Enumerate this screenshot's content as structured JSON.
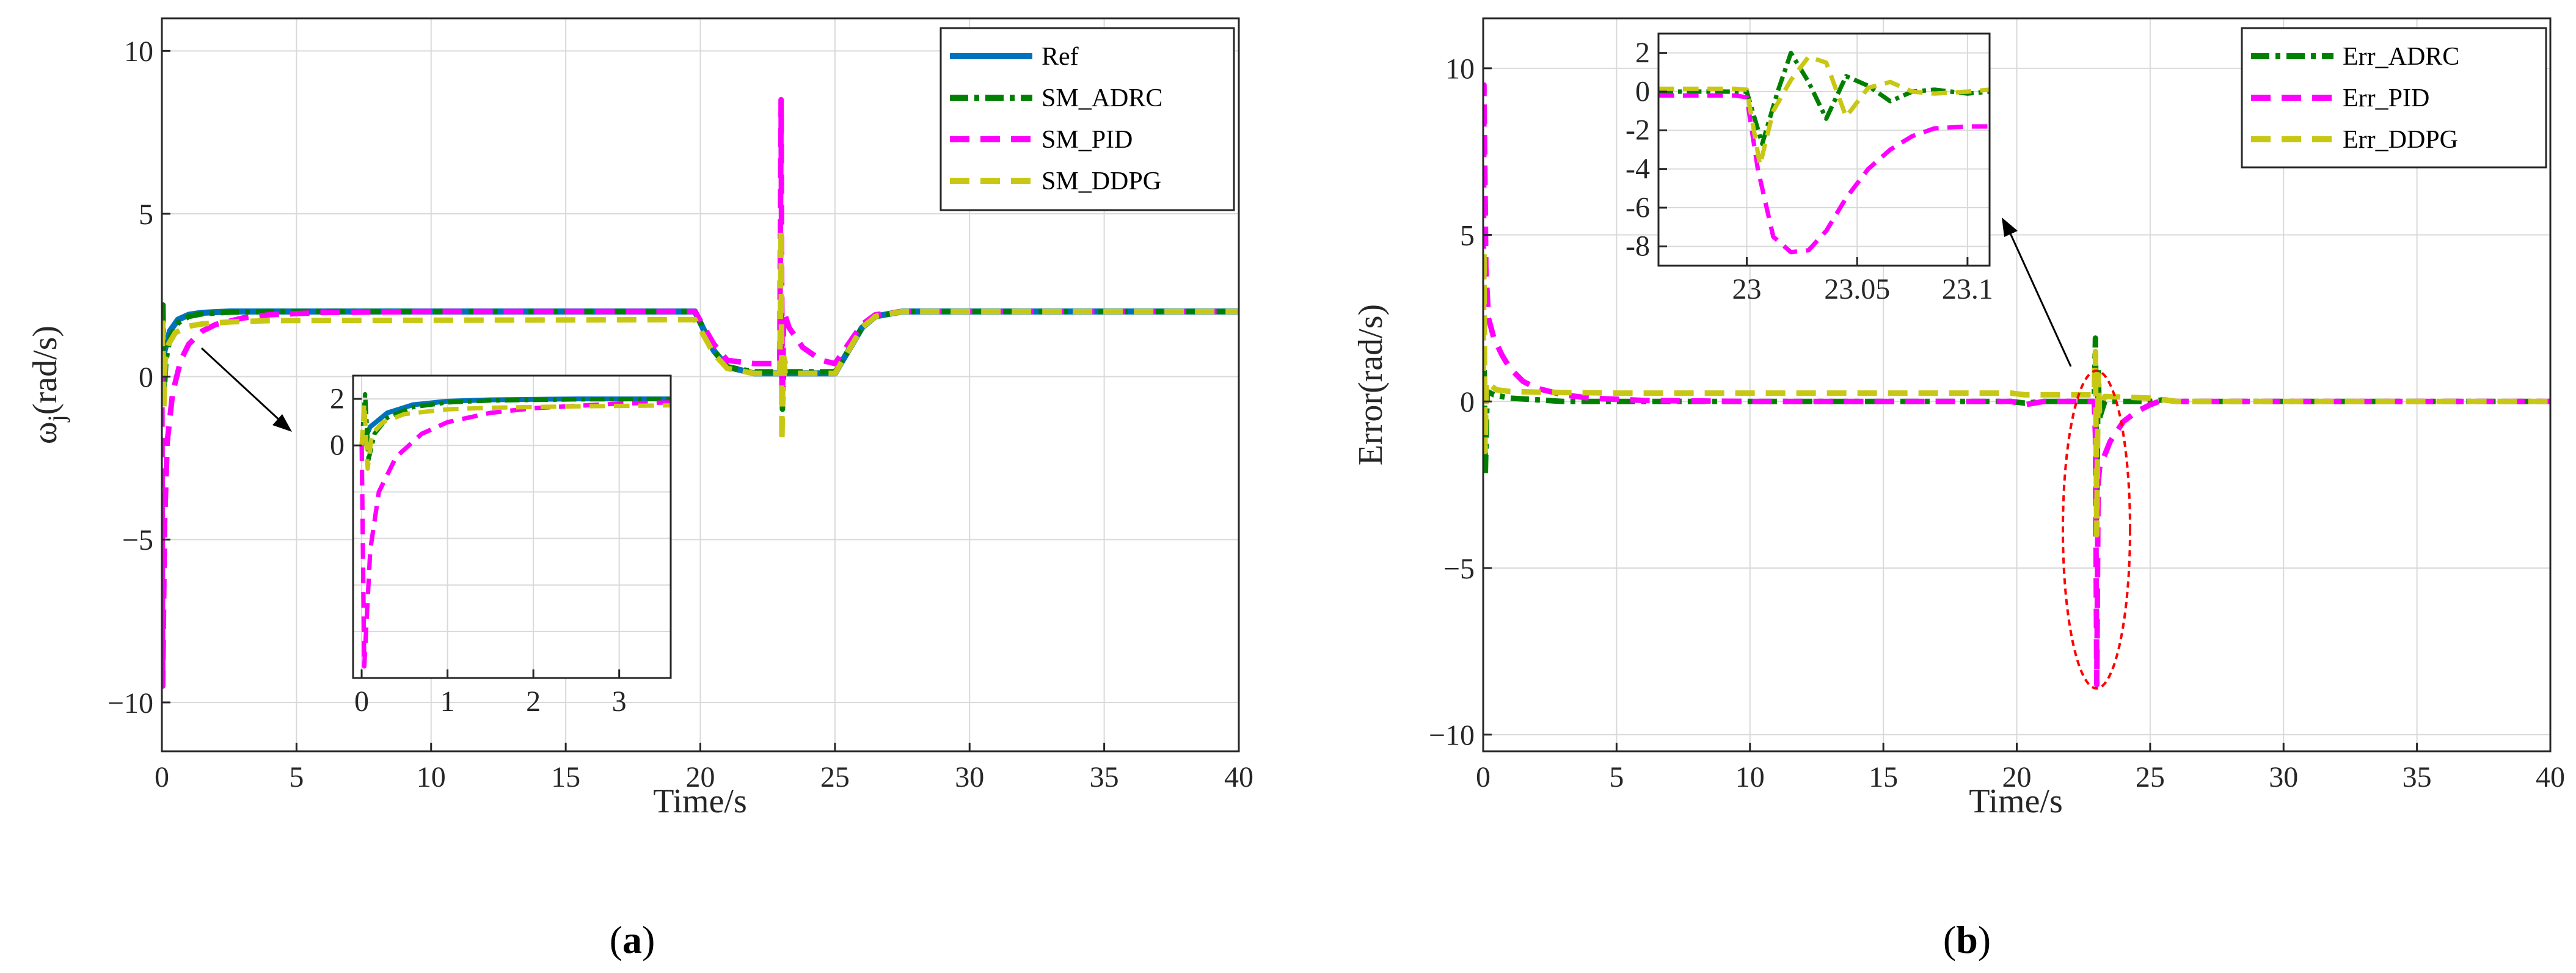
{
  "colors": {
    "ref": "#0072bd",
    "adrc": "#008000",
    "pid": "#ff00ff",
    "ddpg": "#c8c814",
    "annot": "#ff0000"
  },
  "chart_data": [
    {
      "type": "line",
      "panel_label": "(a)",
      "panel_letter": "a",
      "xlabel": "Time/s",
      "ylabel": "ω",
      "ylabel_sub": "j",
      "ylabel_rest": "(rad/s)",
      "xlim": [
        0,
        40
      ],
      "ylim": [
        -11.5,
        11
      ],
      "xticks": [
        0,
        5,
        10,
        15,
        20,
        25,
        30,
        35,
        40
      ],
      "yticks": [
        -10,
        -5,
        0,
        5,
        10
      ],
      "ytick_labels": [
        "−10",
        "−5",
        "0",
        "5",
        "10"
      ],
      "grid": true,
      "legend_position": "top-right",
      "legend": [
        "Ref",
        "SM_ADRC",
        "SM_PID",
        "SM_DDPG"
      ],
      "series": [
        {
          "name": "Ref",
          "x": [
            0,
            0.1,
            0.3,
            0.6,
            1.0,
            1.5,
            2.5,
            4,
            19.8,
            20.5,
            21.0,
            22.0,
            25.0,
            25.5,
            26.0,
            26.5,
            27.5,
            40
          ],
          "y": [
            0,
            0.8,
            1.4,
            1.75,
            1.9,
            1.96,
            2.0,
            2.0,
            2.0,
            0.8,
            0.3,
            0.1,
            0.1,
            0.8,
            1.5,
            1.85,
            2.0,
            2.0
          ]
        },
        {
          "name": "SM_ADRC",
          "x": [
            0,
            0.04,
            0.08,
            0.15,
            0.3,
            0.6,
            1.0,
            1.5,
            2.5,
            4,
            19.8,
            20.5,
            21.0,
            22.0,
            22.95,
            23.0,
            23.05,
            23.1,
            23.2,
            23.5,
            25.0,
            25.5,
            26.0,
            26.5,
            27.5,
            40
          ],
          "y": [
            0,
            2.2,
            -0.6,
            0.5,
            1.2,
            1.65,
            1.85,
            1.93,
            1.98,
            2.0,
            2.0,
            0.8,
            0.3,
            0.15,
            0.15,
            2.0,
            -1.0,
            0.6,
            0.15,
            0.15,
            0.15,
            0.8,
            1.5,
            1.85,
            2.0,
            2.0
          ]
        },
        {
          "name": "SM_PID",
          "x": [
            0,
            0.03,
            0.1,
            0.2,
            0.4,
            0.7,
            1.0,
            1.5,
            2.0,
            3.0,
            4.0,
            6.0,
            10,
            19.8,
            20.5,
            21.0,
            22.0,
            22.95,
            23.0,
            23.02,
            23.05,
            23.1,
            23.3,
            23.8,
            24.5,
            25.0,
            25.5,
            26.0,
            26.5,
            27.5,
            40
          ],
          "y": [
            0,
            -9.5,
            -4.5,
            -2.0,
            -0.5,
            0.5,
            1.0,
            1.4,
            1.6,
            1.8,
            1.9,
            1.97,
            2.0,
            2.0,
            1.0,
            0.5,
            0.4,
            0.4,
            8.5,
            3.0,
            -0.5,
            2.0,
            1.5,
            0.9,
            0.5,
            0.4,
            1.0,
            1.6,
            1.9,
            2.0,
            2.0
          ]
        },
        {
          "name": "SM_DDPG",
          "x": [
            0,
            0.03,
            0.07,
            0.12,
            0.25,
            0.5,
            1.0,
            1.5,
            2.5,
            4,
            19.8,
            20.5,
            21.0,
            22.0,
            22.95,
            23.0,
            23.03,
            23.08,
            23.15,
            23.3,
            25.0,
            25.5,
            26.0,
            26.5,
            27.5,
            40
          ],
          "y": [
            0,
            1.8,
            -1.0,
            0.5,
            1.0,
            1.35,
            1.55,
            1.62,
            1.68,
            1.72,
            1.75,
            0.7,
            0.25,
            0.1,
            0.1,
            4.5,
            -2.0,
            0.8,
            0.1,
            0.1,
            0.1,
            0.8,
            1.5,
            1.85,
            2.0,
            2.0
          ]
        }
      ],
      "inset": {
        "xlim": [
          -0.1,
          3.6
        ],
        "ylim": [
          -10,
          3
        ],
        "xticks": [
          0,
          1,
          2,
          3
        ],
        "yticks": [
          0,
          2
        ],
        "grid_y": [
          -10,
          -8,
          -6,
          -4,
          -2,
          0,
          2
        ],
        "series": [
          {
            "name": "Ref",
            "x": [
              0,
              0.1,
              0.3,
              0.6,
              1.0,
              1.5,
              2.5,
              3.6
            ],
            "y": [
              0,
              0.8,
              1.4,
              1.75,
              1.9,
              1.96,
              2.0,
              2.0
            ]
          },
          {
            "name": "SM_ADRC",
            "x": [
              0,
              0.04,
              0.08,
              0.15,
              0.3,
              0.6,
              1.0,
              1.5,
              2.5,
              3.6
            ],
            "y": [
              0,
              2.2,
              -0.6,
              0.5,
              1.2,
              1.65,
              1.85,
              1.93,
              1.98,
              2.0
            ]
          },
          {
            "name": "SM_PID",
            "x": [
              0,
              0.03,
              0.1,
              0.2,
              0.4,
              0.7,
              1.0,
              1.5,
              2.0,
              3.0,
              3.6
            ],
            "y": [
              0,
              -9.5,
              -4.5,
              -2.0,
              -0.5,
              0.5,
              1.0,
              1.4,
              1.6,
              1.8,
              1.85
            ]
          },
          {
            "name": "SM_DDPG",
            "x": [
              0,
              0.03,
              0.07,
              0.12,
              0.25,
              0.5,
              1.0,
              1.5,
              2.5,
              3.6
            ],
            "y": [
              0,
              1.8,
              -1.0,
              0.5,
              1.0,
              1.35,
              1.55,
              1.62,
              1.68,
              1.72
            ]
          }
        ]
      }
    },
    {
      "type": "line",
      "panel_label": "(b)",
      "panel_letter": "b",
      "xlabel": "Time/s",
      "ylabel": "Error(rad/s)",
      "xlim": [
        0,
        40
      ],
      "ylim": [
        -10.5,
        11.5
      ],
      "xticks": [
        0,
        5,
        10,
        15,
        20,
        25,
        30,
        35,
        40
      ],
      "yticks": [
        -10,
        -5,
        0,
        5,
        10
      ],
      "ytick_labels": [
        "−10",
        "−5",
        "0",
        "5",
        "10"
      ],
      "grid": true,
      "legend_position": "top-right",
      "legend": [
        "Err_ADRC",
        "Err_PID",
        "Err_DDPG"
      ],
      "series": [
        {
          "name": "Err_ADRC",
          "x": [
            0,
            0.04,
            0.08,
            0.15,
            0.4,
            1.0,
            2.0,
            3.0,
            19.8,
            20.3,
            21.0,
            22.9,
            22.95,
            23.0,
            23.05,
            23.1,
            23.3,
            25.0,
            25.5,
            26.0,
            27.0,
            40
          ],
          "y": [
            0,
            1.0,
            -2.2,
            0.3,
            0.2,
            0.1,
            0.05,
            0.0,
            0.0,
            -0.05,
            0.0,
            0.0,
            1.9,
            -3.5,
            1.0,
            -0.5,
            0.0,
            0.0,
            0.05,
            0.0,
            0.0,
            0.0
          ]
        },
        {
          "name": "Err_PID",
          "x": [
            0,
            0.03,
            0.1,
            0.2,
            0.4,
            0.7,
            1.0,
            1.5,
            2.0,
            3.0,
            4.0,
            6.0,
            10,
            19.8,
            20.3,
            21.0,
            22.9,
            22.95,
            23.0,
            23.05,
            23.1,
            23.5,
            24.0,
            24.5,
            25.0,
            25.5,
            26.0,
            27.0,
            40
          ],
          "y": [
            0,
            9.5,
            4.0,
            2.5,
            1.9,
            1.4,
            1.0,
            0.6,
            0.4,
            0.2,
            0.1,
            0.03,
            0.0,
            0.0,
            -0.1,
            0.0,
            0.0,
            -1.0,
            -8.5,
            -2.5,
            -2.0,
            -1.2,
            -0.6,
            -0.3,
            -0.1,
            0.05,
            0.0,
            0.0,
            0.0
          ]
        },
        {
          "name": "Err_DDPG",
          "x": [
            0,
            0.03,
            0.07,
            0.12,
            0.25,
            0.5,
            1.0,
            2.0,
            5.0,
            19.8,
            20.3,
            21.0,
            22.9,
            22.95,
            23.0,
            23.05,
            23.1,
            23.3,
            25.0,
            25.5,
            26.0,
            27.0,
            40
          ],
          "y": [
            0,
            4.5,
            -1.5,
            0.6,
            0.5,
            0.35,
            0.3,
            0.28,
            0.25,
            0.25,
            0.2,
            0.2,
            0.2,
            1.5,
            -4.0,
            0.8,
            -0.3,
            0.15,
            0.1,
            0.05,
            0.0,
            0.0,
            0.0
          ]
        }
      ],
      "inset": {
        "xlim": [
          22.96,
          23.11
        ],
        "ylim": [
          -9,
          3
        ],
        "xticks": [
          23,
          23.05,
          23.1
        ],
        "xtick_labels": [
          "23",
          "23.05",
          "23.1"
        ],
        "yticks": [
          -8,
          -6,
          -4,
          -2,
          0,
          2
        ],
        "series": [
          {
            "name": "Err_ADRC",
            "x": [
              22.96,
              22.995,
              23.0,
              23.007,
              23.014,
              23.02,
              23.028,
              23.036,
              23.045,
              23.055,
              23.065,
              23.075,
              23.085,
              23.1,
              23.11
            ],
            "y": [
              0,
              0,
              0,
              -2.7,
              0.0,
              2.0,
              0.5,
              -1.4,
              0.8,
              0.3,
              -0.5,
              0.0,
              0.1,
              -0.1,
              0.0
            ]
          },
          {
            "name": "Err_PID",
            "x": [
              22.96,
              22.995,
              23.0,
              23.005,
              23.012,
              23.02,
              23.028,
              23.036,
              23.045,
              23.055,
              23.065,
              23.075,
              23.085,
              23.1,
              23.11
            ],
            "y": [
              -0.2,
              -0.2,
              -0.3,
              -4.0,
              -7.5,
              -8.3,
              -8.2,
              -7.2,
              -5.5,
              -4.0,
              -3.0,
              -2.3,
              -1.9,
              -1.8,
              -1.8
            ]
          },
          {
            "name": "Err_DDPG",
            "x": [
              22.96,
              22.995,
              23.0,
              23.006,
              23.012,
              23.02,
              23.028,
              23.036,
              23.045,
              23.055,
              23.065,
              23.075,
              23.085,
              23.1,
              23.11
            ],
            "y": [
              0.15,
              0.15,
              0.1,
              -3.8,
              -1.0,
              0.6,
              1.8,
              1.5,
              -1.3,
              0.2,
              0.5,
              0.0,
              -0.1,
              0.0,
              0.1
            ]
          }
        ]
      }
    }
  ]
}
